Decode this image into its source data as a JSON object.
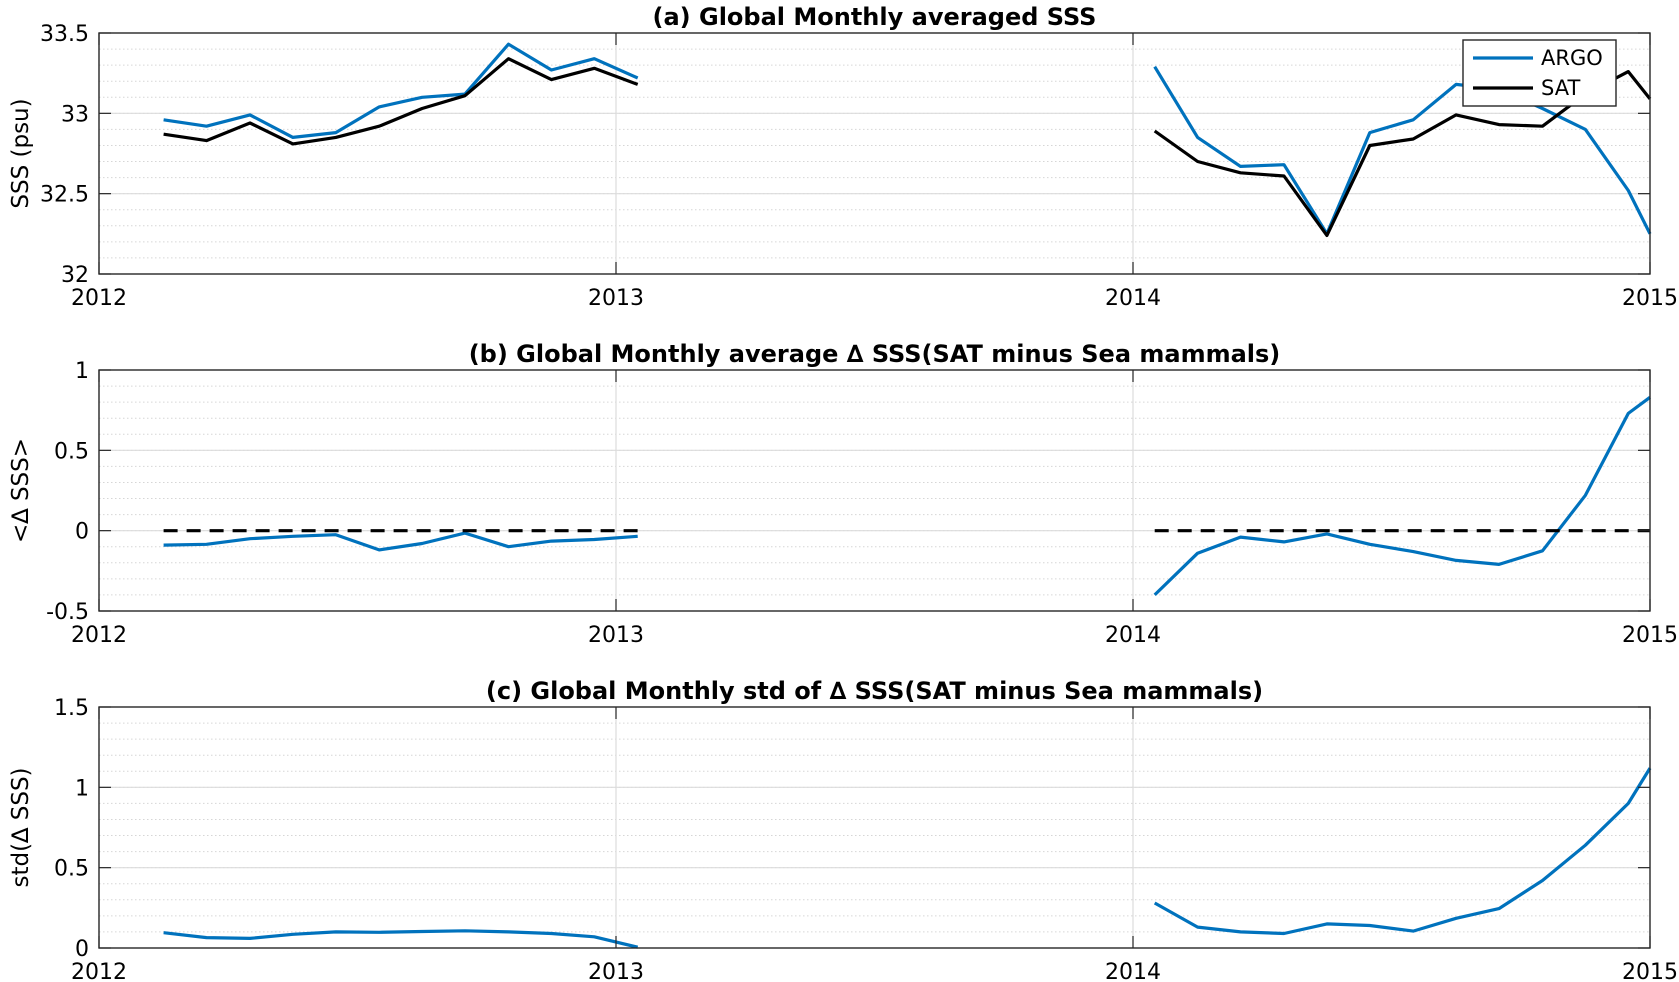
{
  "chart_data": [
    {
      "type": "line",
      "title": "(a) Global Monthly averaged SSS",
      "xlabel": "",
      "ylabel": "SSS (psu)",
      "xlim": [
        2012,
        2015
      ],
      "ylim": [
        32,
        33.5
      ],
      "xticks": [
        "2012",
        "2013",
        "2014",
        "2015"
      ],
      "yticks": [
        "32",
        "32.5",
        "33",
        "33.5"
      ],
      "grid": true,
      "minor_grid": true,
      "legend": "top-right",
      "series": [
        {
          "name": "ARGO",
          "color": "#0072bd",
          "segments": [
            {
              "x": [
                2012.125,
                2012.208,
                2012.292,
                2012.375,
                2012.458,
                2012.542,
                2012.625,
                2012.708,
                2012.792,
                2012.875,
                2012.958,
                2013.042
              ],
              "y": [
                32.96,
                32.92,
                32.99,
                32.85,
                32.88,
                33.04,
                33.1,
                33.12,
                33.43,
                33.27,
                33.34,
                33.22
              ]
            },
            {
              "x": [
                2014.042,
                2014.125,
                2014.208,
                2014.292,
                2014.375,
                2014.458,
                2014.542,
                2014.625,
                2014.708,
                2014.792,
                2014.875,
                2014.958,
                2015.0
              ],
              "y": [
                33.29,
                32.85,
                32.67,
                32.68,
                32.25,
                32.88,
                32.96,
                33.18,
                33.15,
                33.03,
                32.9,
                32.52,
                32.25
              ]
            }
          ]
        },
        {
          "name": "SAT",
          "color": "#000000",
          "segments": [
            {
              "x": [
                2012.125,
                2012.208,
                2012.292,
                2012.375,
                2012.458,
                2012.542,
                2012.625,
                2012.708,
                2012.792,
                2012.875,
                2012.958,
                2013.042
              ],
              "y": [
                32.87,
                32.83,
                32.94,
                32.81,
                32.85,
                32.92,
                33.03,
                33.11,
                33.34,
                33.21,
                33.28,
                33.18
              ]
            },
            {
              "x": [
                2014.042,
                2014.125,
                2014.208,
                2014.292,
                2014.375,
                2014.458,
                2014.542,
                2014.625,
                2014.708,
                2014.792,
                2014.875,
                2014.958,
                2015.0
              ],
              "y": [
                32.89,
                32.7,
                32.63,
                32.61,
                32.24,
                32.8,
                32.84,
                32.99,
                32.93,
                32.92,
                33.12,
                33.26,
                33.09
              ]
            }
          ]
        }
      ]
    },
    {
      "type": "line",
      "title": "(b) Global Monthly average ∆ SSS(SAT minus Sea mammals)",
      "xlabel": "",
      "ylabel": "<∆ SSS>",
      "xlim": [
        2012,
        2015
      ],
      "ylim": [
        -0.5,
        1
      ],
      "xticks": [
        "2012",
        "2013",
        "2014",
        "2015"
      ],
      "yticks": [
        "-0.5",
        "0",
        "0.5",
        "1"
      ],
      "grid": true,
      "minor_grid": true,
      "series": [
        {
          "name": "",
          "color": "#0072bd",
          "segments": [
            {
              "x": [
                2012.125,
                2012.208,
                2012.292,
                2012.375,
                2012.458,
                2012.542,
                2012.625,
                2012.708,
                2012.792,
                2012.875,
                2012.958,
                2013.042
              ],
              "y": [
                -0.09,
                -0.085,
                -0.05,
                -0.035,
                -0.025,
                -0.12,
                -0.08,
                -0.015,
                -0.1,
                -0.065,
                -0.055,
                -0.035
              ]
            },
            {
              "x": [
                2014.042,
                2014.125,
                2014.208,
                2014.292,
                2014.375,
                2014.458,
                2014.542,
                2014.625,
                2014.708,
                2014.792,
                2014.875,
                2014.958,
                2015.0
              ],
              "y": [
                -0.4,
                -0.14,
                -0.04,
                -0.07,
                -0.02,
                -0.085,
                -0.13,
                -0.185,
                -0.21,
                -0.125,
                0.22,
                0.73,
                0.83
              ]
            }
          ]
        },
        {
          "name": "",
          "color": "#000000",
          "dashed": true,
          "segments": [
            {
              "x": [
                2012.125,
                2013.042
              ],
              "y": [
                0,
                0
              ]
            },
            {
              "x": [
                2014.042,
                2015.0
              ],
              "y": [
                0,
                0
              ]
            }
          ]
        }
      ]
    },
    {
      "type": "line",
      "title": "(c) Global Monthly std of ∆ SSS(SAT minus Sea mammals)",
      "xlabel": "",
      "ylabel": "std(∆ SSS)",
      "xlim": [
        2012,
        2015
      ],
      "ylim": [
        0,
        1.5
      ],
      "xticks": [
        "2012",
        "2013",
        "2014",
        "2015"
      ],
      "yticks": [
        "0",
        "0.5",
        "1",
        "1.5"
      ],
      "grid": true,
      "minor_grid": true,
      "series": [
        {
          "name": "",
          "color": "#0072bd",
          "segments": [
            {
              "x": [
                2012.125,
                2012.208,
                2012.292,
                2012.375,
                2012.458,
                2012.542,
                2012.625,
                2012.708,
                2012.792,
                2012.875,
                2012.958,
                2013.042
              ],
              "y": [
                0.095,
                0.065,
                0.06,
                0.085,
                0.1,
                0.098,
                0.103,
                0.107,
                0.1,
                0.09,
                0.07,
                0.005
              ]
            },
            {
              "x": [
                2014.042,
                2014.125,
                2014.208,
                2014.292,
                2014.375,
                2014.458,
                2014.542,
                2014.625,
                2014.708,
                2014.792,
                2014.875,
                2014.958,
                2015.0
              ],
              "y": [
                0.28,
                0.13,
                0.1,
                0.09,
                0.15,
                0.14,
                0.105,
                0.185,
                0.245,
                0.42,
                0.64,
                0.9,
                1.12
              ]
            }
          ]
        }
      ]
    }
  ]
}
